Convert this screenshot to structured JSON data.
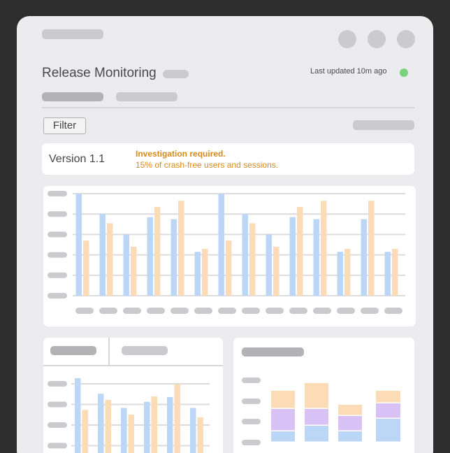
{
  "header": {
    "title": "Release Monitoring",
    "last_updated": "Last updated 10m ago",
    "status_color": "#79d27a"
  },
  "toolbar": {
    "filter_label": "Filter"
  },
  "release": {
    "version": "Version 1.1",
    "alert_title": "Investigation required.",
    "alert_message": "15% of crash-free users and sessions."
  },
  "colors": {
    "blue": "#bcd6f5",
    "orange": "#fbdcb6",
    "purple": "#d8c2f5",
    "alert": "#d78a1a"
  },
  "main_chart": {
    "chart_data": {
      "type": "bar",
      "ylim": [
        0,
        100
      ],
      "series": [
        {
          "values": [
            100,
            80,
            60,
            77,
            75,
            43,
            100,
            80,
            60,
            77,
            75,
            43,
            75,
            43
          ]
        },
        {
          "values": [
            54,
            71,
            48,
            87,
            93,
            46,
            54,
            71,
            48,
            87,
            93,
            46,
            93,
            46
          ]
        }
      ]
    }
  },
  "bottom_left_chart": {
    "chart_data": {
      "type": "bar",
      "ylim": [
        0,
        100
      ],
      "series": [
        {
          "values": [
            100,
            77,
            56,
            65,
            72,
            56
          ]
        },
        {
          "values": [
            53,
            68,
            46,
            73,
            91,
            42
          ]
        }
      ]
    }
  },
  "bottom_right_chart": {
    "chart_data": {
      "type": "bar",
      "stacked": true,
      "series": [
        {
          "values": [
            16,
            24,
            16,
            34
          ]
        },
        {
          "values": [
            32,
            24,
            22,
            22
          ]
        },
        {
          "values": [
            26,
            37,
            16,
            18
          ]
        }
      ]
    }
  }
}
